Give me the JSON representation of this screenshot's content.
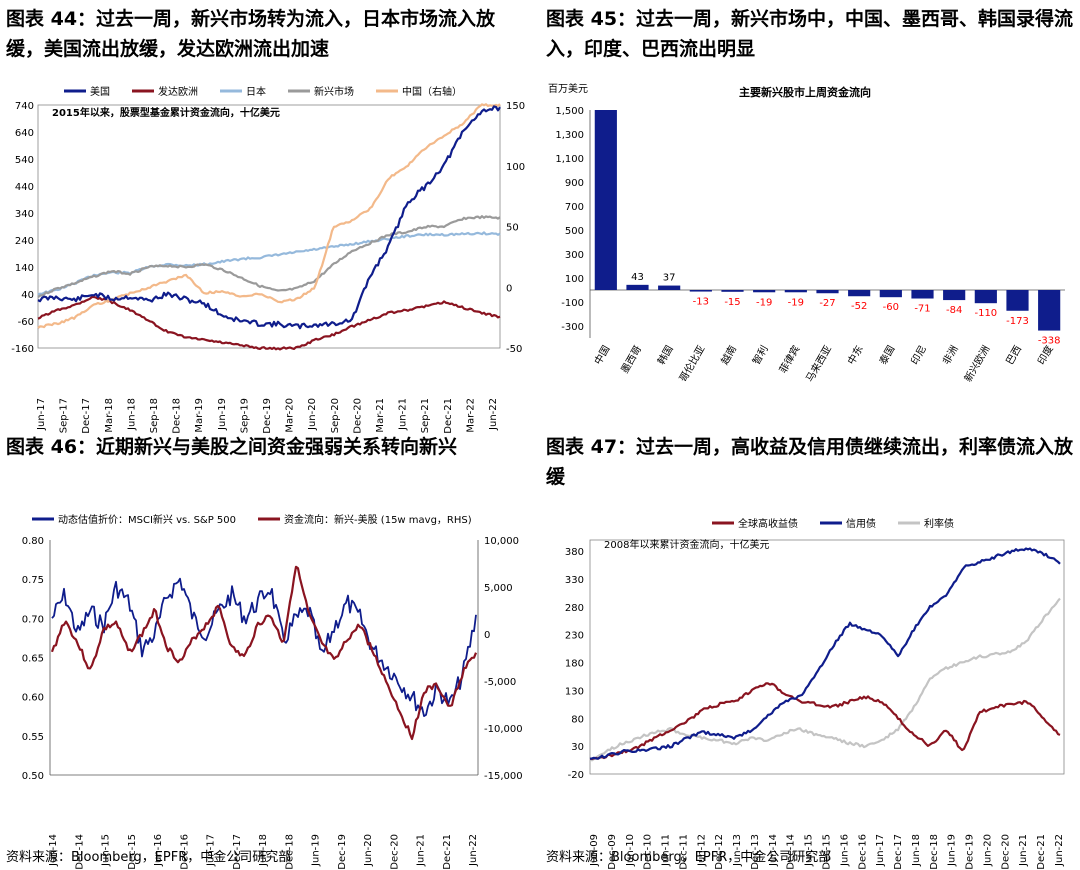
{
  "panels": {
    "p44": {
      "title": "图表 44：过去一周，新兴市场转为流入，日本市场流入放缓，美国流出放缓，发达欧洲流出加速"
    },
    "p45": {
      "title": "图表 45：过去一周，新兴市场中，中国、墨西哥、韩国录得流入，印度、巴西流出明显"
    },
    "p46": {
      "title": "图表 46：近期新兴与美股之间资金强弱关系转向新兴"
    },
    "p47": {
      "title": "图表 47：过去一周，高收益及信用债继续流出，利率债流入放缓"
    }
  },
  "sources": {
    "left": "资料来源：Bloomberg，EPFR，中金公司研究部",
    "right": "资料来源：Bloomberg，EPFR，中金公司研究部"
  },
  "colors": {
    "navy": "#0f1d8c",
    "darkred": "#8a1420",
    "lightblue": "#95b9dc",
    "gray": "#9a9a9a",
    "peach": "#f3b98a",
    "lightgray": "#c4c4c4",
    "red": "#ff0000"
  },
  "chart_data": [
    {
      "id": "c44",
      "type": "line",
      "annotation": "2015年以来，股票型基金累计资金流向，十亿美元",
      "x_ticks": [
        "Jun-17",
        "Sep-17",
        "Dec-17",
        "Mar-18",
        "Jun-18",
        "Sep-18",
        "Dec-18",
        "Mar-19",
        "Jun-19",
        "Sep-19",
        "Dec-19",
        "Mar-20",
        "Jun-20",
        "Sep-20",
        "Dec-20",
        "Mar-21",
        "Jun-21",
        "Sep-21",
        "Dec-21",
        "Mar-22",
        "Jun-22"
      ],
      "ylim": [
        -160,
        740
      ],
      "y_ticks": [
        -160,
        -60,
        40,
        140,
        240,
        340,
        440,
        540,
        640,
        740
      ],
      "y2lim": [
        -50,
        150
      ],
      "y2_ticks": [
        -50,
        0,
        50,
        100,
        150
      ],
      "series": [
        {
          "name": "美国",
          "color": "#0f1d8c",
          "axis": "left",
          "values": [
            20,
            28,
            18,
            40,
            22,
            30,
            15,
            40,
            20,
            5,
            -40,
            -60,
            -70,
            -72,
            -80,
            -75,
            -70,
            -55,
            110,
            220,
            380,
            440,
            520,
            640,
            720,
            730
          ]
        },
        {
          "name": "发达欧洲",
          "color": "#8a1420",
          "axis": "left",
          "values": [
            -50,
            -20,
            0,
            30,
            10,
            -20,
            -60,
            -100,
            -120,
            -130,
            -140,
            -150,
            -160,
            -162,
            -160,
            -130,
            -110,
            -80,
            -55,
            -30,
            -20,
            -5,
            10,
            -10,
            -30,
            -45
          ]
        },
        {
          "name": "日本",
          "color": "#95b9dc",
          "axis": "left",
          "values": [
            40,
            55,
            80,
            110,
            120,
            118,
            140,
            150,
            145,
            150,
            160,
            170,
            175,
            185,
            195,
            205,
            215,
            225,
            235,
            245,
            255,
            260,
            260,
            262,
            265,
            262
          ]
        },
        {
          "name": "新兴市场",
          "color": "#9a9a9a",
          "axis": "left",
          "values": [
            30,
            60,
            80,
            105,
            125,
            115,
            140,
            145,
            140,
            150,
            130,
            100,
            70,
            50,
            60,
            90,
            150,
            200,
            230,
            260,
            270,
            290,
            290,
            320,
            325,
            322
          ]
        },
        {
          "name": "中国（右轴）",
          "color": "#f3b98a",
          "axis": "right",
          "values": [
            -33,
            -30,
            -25,
            -15,
            -10,
            -5,
            0,
            5,
            10,
            -5,
            -3,
            -8,
            -5,
            -12,
            -10,
            0,
            50,
            55,
            65,
            90,
            100,
            115,
            125,
            135,
            150,
            150
          ]
        }
      ]
    },
    {
      "id": "c45",
      "type": "bar",
      "title": "主要新兴股市上周资金流向",
      "ylabel": "百万美元",
      "ylim": [
        -400,
        1500
      ],
      "y_ticks": [
        -300,
        -100,
        100,
        300,
        500,
        700,
        900,
        1100,
        1300,
        1500
      ],
      "categories": [
        "中国",
        "墨西哥",
        "韩国",
        "哥伦比亚",
        "越南",
        "智利",
        "菲律宾",
        "马来西亚",
        "中东",
        "泰国",
        "印尼",
        "非洲",
        "新兴欧洲",
        "巴西",
        "印度"
      ],
      "values": [
        1500,
        43,
        37,
        -13,
        -15,
        -19,
        -19,
        -27,
        -52,
        -60,
        -71,
        -84,
        -110,
        -173,
        -338
      ],
      "labels": [
        "",
        "43",
        "37",
        "-13",
        "-15",
        "-19",
        "-19",
        "-27",
        "-52",
        "-60",
        "-71",
        "-84",
        "-110",
        "-173",
        "-338"
      ]
    },
    {
      "id": "c46",
      "type": "line",
      "x_ticks": [
        "Jun-14",
        "Dec-14",
        "Jun-15",
        "Dec-15",
        "Jun-16",
        "Dec-16",
        "Jun-17",
        "Dec-17",
        "Jun-18",
        "Dec-18",
        "Jun-19",
        "Dec-19",
        "Jun-20",
        "Dec-20",
        "Jun-21",
        "Dec-21",
        "Jun-22"
      ],
      "ylim": [
        0.5,
        0.8
      ],
      "y_ticks": [
        "0.50",
        "0.55",
        "0.60",
        "0.65",
        "0.70",
        "0.75",
        "0.80"
      ],
      "y2lim": [
        -15000,
        10000
      ],
      "y2_ticks": [
        "-15,000",
        "-10,000",
        "-5,000",
        "0",
        "5,000",
        "10,000"
      ],
      "series": [
        {
          "name": "动态估值折价：MSCI新兴 vs. S&P 500",
          "color": "#0f1d8c",
          "axis": "left",
          "values": [
            0.7,
            0.73,
            0.68,
            0.71,
            0.69,
            0.74,
            0.72,
            0.66,
            0.68,
            0.73,
            0.75,
            0.7,
            0.68,
            0.71,
            0.73,
            0.7,
            0.72,
            0.74,
            0.67,
            0.7,
            0.71,
            0.65,
            0.69,
            0.72,
            0.7,
            0.66,
            0.64,
            0.62,
            0.6,
            0.58,
            0.61,
            0.59,
            0.63,
            0.7
          ]
        },
        {
          "name": "资金流向：新兴-美股 (15w mavg，RHS)",
          "color": "#8a1420",
          "axis": "right",
          "values": [
            -2000,
            1500,
            -1000,
            -4000,
            500,
            1200,
            -2000,
            0,
            2500,
            -1500,
            -3000,
            -500,
            1000,
            3000,
            -1500,
            -2500,
            1000,
            2000,
            -1000,
            7500,
            2000,
            -1000,
            -3000,
            -500,
            1000,
            -2000,
            -5000,
            -8000,
            -11000,
            -6000,
            -5500,
            -8000,
            -4000,
            -2000
          ]
        }
      ]
    },
    {
      "id": "c47",
      "type": "line",
      "annotation": "2008年以来累计资金流向，十亿美元",
      "x_ticks": [
        "Jun-09",
        "Dec-09",
        "Jun-10",
        "Dec-10",
        "Jun-11",
        "Dec-11",
        "Jun-12",
        "Dec-12",
        "Jun-13",
        "Dec-13",
        "Jun-14",
        "Dec-14",
        "Jun-15",
        "Dec-15",
        "Jun-16",
        "Dec-16",
        "Jun-17",
        "Dec-17",
        "Jun-18",
        "Dec-18",
        "Jun-19",
        "Dec-19",
        "Jun-20",
        "Dec-20",
        "Jun-21",
        "Dec-21",
        "Jun-22"
      ],
      "ylim": [
        -20,
        400
      ],
      "y_ticks": [
        -20,
        30,
        80,
        130,
        180,
        230,
        280,
        330,
        380
      ],
      "series": [
        {
          "name": "全球高收益债",
          "color": "#8a1420",
          "values": [
            5,
            12,
            20,
            28,
            45,
            60,
            75,
            95,
            105,
            110,
            130,
            145,
            125,
            110,
            105,
            100,
            110,
            118,
            110,
            80,
            50,
            30,
            60,
            20,
            90,
            100,
            105,
            110,
            80,
            50
          ]
        },
        {
          "name": "信用债",
          "color": "#0f1d8c",
          "values": [
            5,
            12,
            20,
            22,
            25,
            30,
            45,
            55,
            50,
            45,
            60,
            85,
            110,
            120,
            160,
            210,
            250,
            240,
            230,
            190,
            240,
            280,
            300,
            350,
            360,
            370,
            380,
            385,
            375,
            360
          ]
        },
        {
          "name": "利率债",
          "color": "#c4c4c4",
          "values": [
            5,
            20,
            35,
            45,
            55,
            60,
            50,
            45,
            40,
            35,
            45,
            40,
            55,
            60,
            50,
            45,
            35,
            30,
            40,
            60,
            100,
            150,
            170,
            180,
            190,
            195,
            200,
            220,
            260,
            295
          ]
        }
      ]
    }
  ]
}
